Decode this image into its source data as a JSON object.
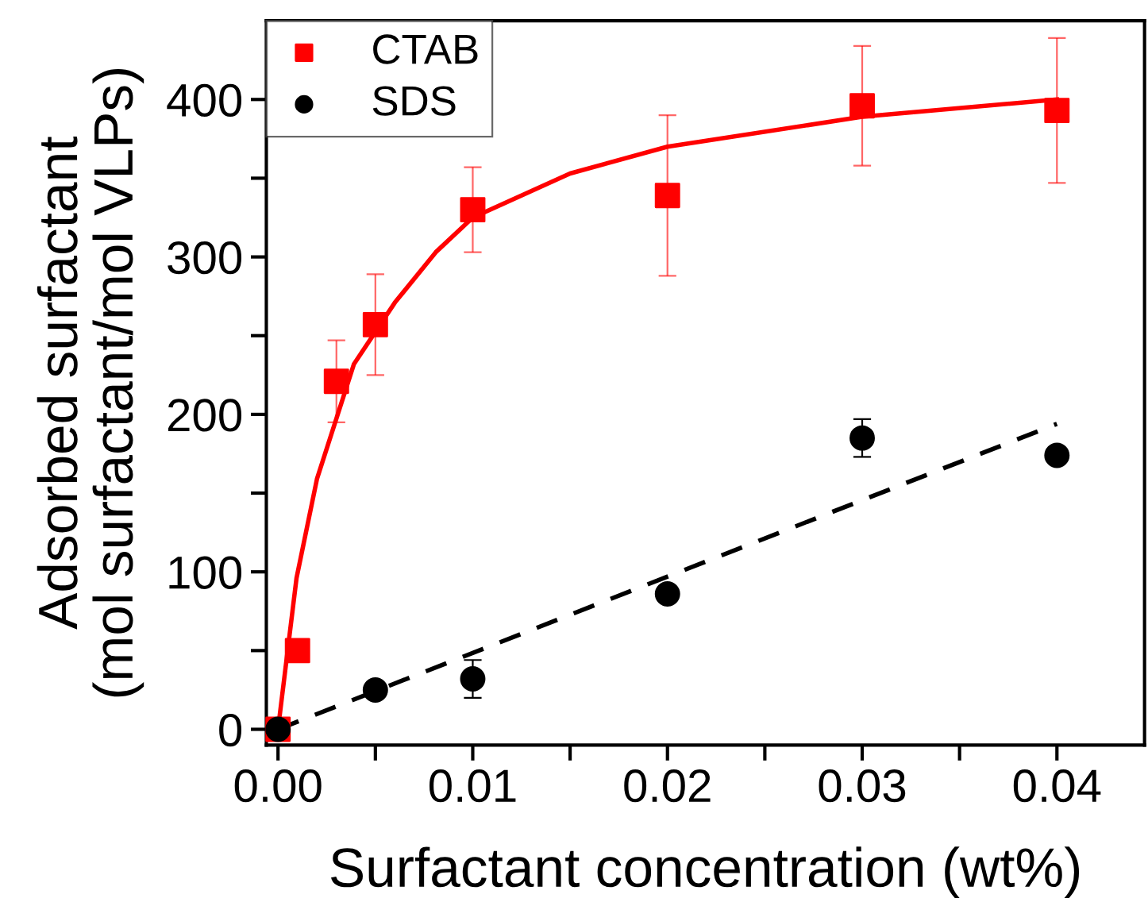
{
  "chart_data": {
    "type": "scatter",
    "xlabel": "Surfactant concentration (wt%)",
    "ylabel": "Adsorbed surfactant\n(mol surfactant/mol VLPs)",
    "xlim": [
      -0.0006,
      0.0445
    ],
    "ylim": [
      -10,
      450
    ],
    "xticks": [
      "0.00",
      {
        "value": 0.005,
        "label": null
      },
      {
        "value": 0.01,
        "label": "0.01"
      },
      {
        "value": 0.015,
        "label": null
      },
      {
        "value": 0.02,
        "label": "0.02"
      },
      {
        "value": 0.025,
        "label": null
      },
      {
        "value": 0.03,
        "label": "0.03"
      },
      {
        "value": 0.035,
        "label": null
      },
      {
        "value": 0.04,
        "label": "0.04"
      }
    ],
    "yticks": [
      0,
      {
        "value": 50,
        "label": null
      },
      100,
      {
        "value": 150,
        "label": null
      },
      200,
      {
        "value": 250,
        "label": null
      },
      300,
      {
        "value": 350,
        "label": null
      },
      400
    ],
    "legend": "top left",
    "grid": false,
    "series": [
      {
        "name": "CTAB",
        "marker": "square",
        "color": "#ff0000",
        "x": [
          0,
          0.001,
          0.003,
          0.005,
          0.01,
          0.02,
          0.03,
          0.04
        ],
        "values": [
          0,
          50,
          221,
          257,
          330,
          339,
          396,
          393
        ],
        "errors": [
          null,
          null,
          26,
          32,
          27,
          51,
          38,
          46
        ]
      },
      {
        "name": "SDS",
        "marker": "circle",
        "color": "#000000",
        "x": [
          0,
          0.005,
          0.01,
          0.02,
          0.03,
          0.04
        ],
        "values": [
          0,
          25,
          32,
          86,
          185,
          174
        ],
        "errors": [
          null,
          null,
          12,
          null,
          12,
          null
        ]
      },
      {
        "type": "line",
        "line_style": "solid",
        "color": "#ff0000",
        "x": [
          0,
          0.00095,
          0.002,
          0.0039,
          0.006,
          0.0081,
          0.01,
          0.015,
          0.02,
          0.03,
          0.04
        ],
        "values": [
          0,
          96,
          159,
          232,
          271,
          303,
          325,
          353,
          370,
          389,
          400
        ]
      },
      {
        "type": "line",
        "line_style": "dashed",
        "color": "#000000",
        "x": [
          0,
          0.04
        ],
        "values": [
          0,
          194
        ]
      }
    ]
  }
}
